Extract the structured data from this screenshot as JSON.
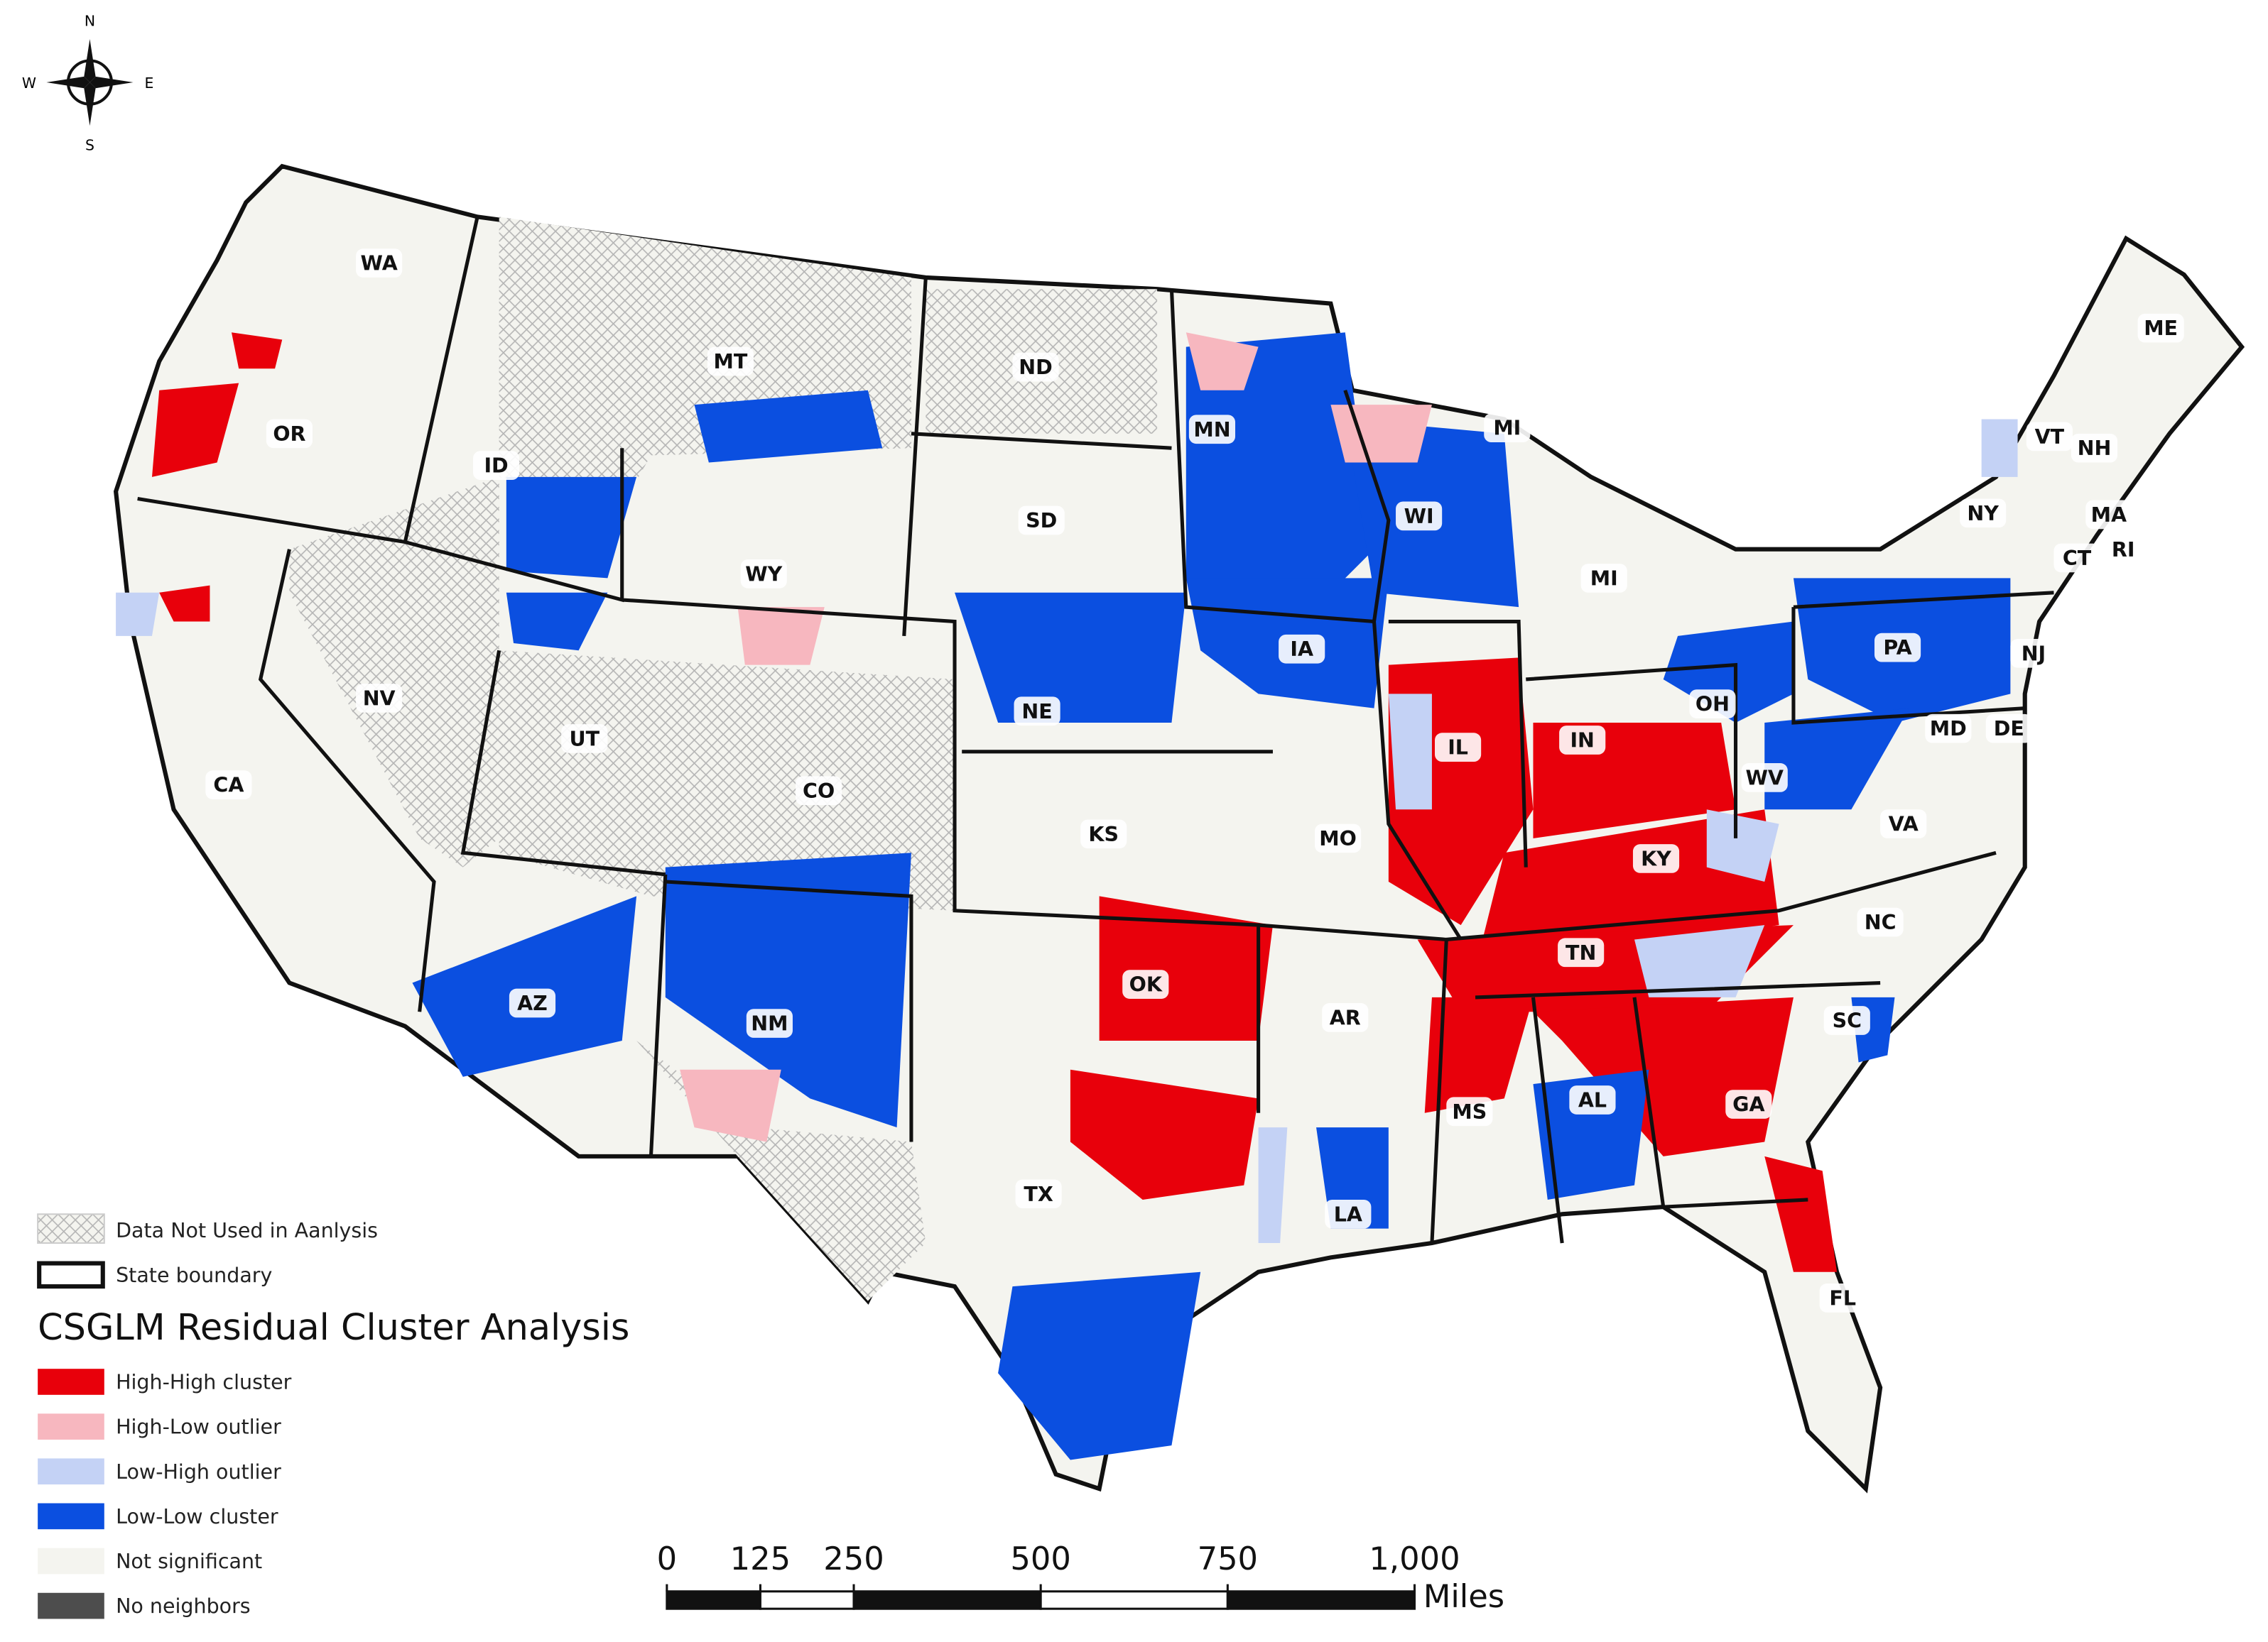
{
  "compass": {
    "north": "N",
    "south": "S",
    "east": "E",
    "west": "W"
  },
  "map": {
    "states": [
      "WA",
      "OR",
      "CA",
      "NV",
      "ID",
      "MT",
      "WY",
      "UT",
      "CO",
      "AZ",
      "NM",
      "ND",
      "SD",
      "NE",
      "KS",
      "OK",
      "TX",
      "MN",
      "IA",
      "MO",
      "AR",
      "LA",
      "WI",
      "IL",
      "MI",
      "MI",
      "IN",
      "OH",
      "KY",
      "TN",
      "MS",
      "AL",
      "GA",
      "FL",
      "SC",
      "NC",
      "VA",
      "WV",
      "MD",
      "DE",
      "PA",
      "NJ",
      "NY",
      "VT",
      "NH",
      "ME",
      "MA",
      "CT",
      "RI"
    ]
  },
  "legend": {
    "data_not_used": "Data Not Used in Aanlysis",
    "state_boundary": "State boundary",
    "title": "CSGLM Residual Cluster Analysis",
    "items": [
      {
        "label": "High-High cluster",
        "color": "#e8000b"
      },
      {
        "label": "High-Low outlier",
        "color": "#f7b7bf"
      },
      {
        "label": "Low-High outlier",
        "color": "#c4d2f5"
      },
      {
        "label": "Low-Low cluster",
        "color": "#0b4fe0"
      },
      {
        "label": "Not significant",
        "color": "#f4f4ef"
      },
      {
        "label": "No neighbors",
        "color": "#4d4d4d"
      }
    ]
  },
  "scale_bar": {
    "ticks": [
      0,
      125,
      250,
      500,
      750,
      {
        "value": 1000,
        "label": "1,000"
      }
    ],
    "unit": "Miles"
  }
}
